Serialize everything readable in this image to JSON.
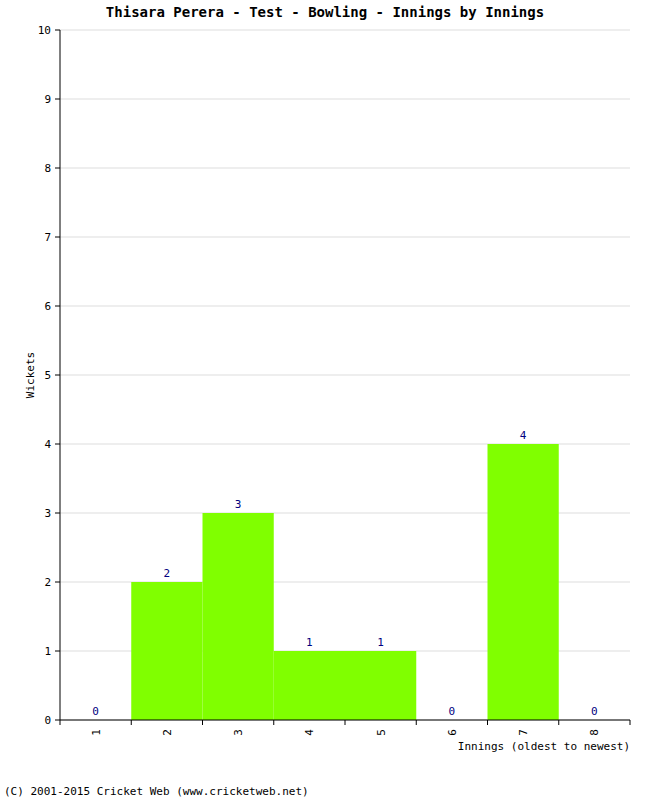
{
  "chart_data": {
    "type": "bar",
    "title": "Thisara Perera - Test - Bowling - Innings by Innings",
    "x_label": "Innings (oldest to newest)",
    "y_label": "Wickets",
    "credit": "(C) 2001-2015 Cricket Web (www.cricketweb.net)",
    "categories": [
      "1",
      "2",
      "3",
      "4",
      "5",
      "6",
      "7",
      "8"
    ],
    "values": [
      0,
      2,
      3,
      1,
      1,
      0,
      4,
      0
    ],
    "color": "#80ff00",
    "ylim": [
      0,
      10
    ],
    "yticks": [
      0,
      1,
      2,
      3,
      4,
      5,
      6,
      7,
      8,
      9,
      10
    ],
    "grid": true,
    "data_labels": true
  }
}
